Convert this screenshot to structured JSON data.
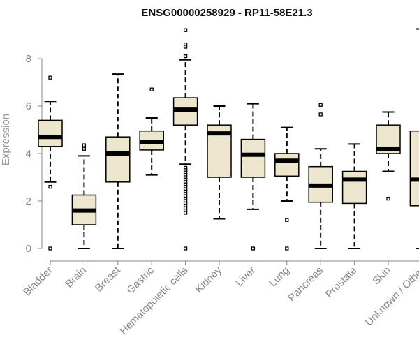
{
  "chart_data": {
    "type": "boxplot",
    "title": "ENSG00000258929 - RP11-58E21.3",
    "xlabel": "",
    "ylabel": "Expression",
    "ylim": [
      0,
      9.5
    ],
    "yticks": [
      0,
      2,
      4,
      6,
      8
    ],
    "box_color": "#ede5cc",
    "line_color": "#000000",
    "axis_color": "#888888",
    "categories": [
      "Bladder",
      "Brain",
      "Breast",
      "Gastric",
      "Hematopoietic cells",
      "Kidney",
      "Liver",
      "Lung",
      "Pancreas",
      "Prostate",
      "Skin",
      "Unknown / Other"
    ],
    "boxes": [
      {
        "category": "Bladder",
        "whisker_low": 2.8,
        "q1": 4.3,
        "median": 4.7,
        "q3": 5.4,
        "whisker_high": 6.2,
        "outliers": [
          7.2,
          2.6,
          0
        ]
      },
      {
        "category": "Brain",
        "whisker_low": 0,
        "q1": 1.0,
        "median": 1.6,
        "q3": 2.25,
        "whisker_high": 3.9,
        "outliers": [
          4.2,
          4.35
        ]
      },
      {
        "category": "Breast",
        "whisker_low": 0,
        "q1": 2.8,
        "median": 4.0,
        "q3": 4.7,
        "whisker_high": 7.35,
        "outliers": []
      },
      {
        "category": "Gastric",
        "whisker_low": 3.1,
        "q1": 4.15,
        "median": 4.5,
        "q3": 4.95,
        "whisker_high": 5.5,
        "outliers": [
          6.7
        ]
      },
      {
        "category": "Hematopoietic cells",
        "whisker_low": 3.55,
        "q1": 5.2,
        "median": 5.85,
        "q3": 6.35,
        "whisker_high": 7.95,
        "outliers": [
          9.2,
          8.6,
          8.5,
          8.1,
          3.4,
          3.3,
          3.2,
          3.1,
          3.0,
          2.9,
          2.8,
          2.7,
          2.6,
          2.5,
          2.4,
          2.3,
          2.2,
          2.1,
          2.0,
          1.9,
          1.8,
          1.7,
          1.6,
          1.5,
          0
        ]
      },
      {
        "category": "Kidney",
        "whisker_low": 1.25,
        "q1": 3.0,
        "median": 4.85,
        "q3": 5.2,
        "whisker_high": 6.0,
        "outliers": []
      },
      {
        "category": "Liver",
        "whisker_low": 1.65,
        "q1": 3.0,
        "median": 3.95,
        "q3": 4.6,
        "whisker_high": 6.1,
        "outliers": [
          0
        ]
      },
      {
        "category": "Lung",
        "whisker_low": 2.0,
        "q1": 3.05,
        "median": 3.7,
        "q3": 4.0,
        "whisker_high": 5.1,
        "outliers": [
          1.2,
          0
        ]
      },
      {
        "category": "Pancreas",
        "whisker_low": 0,
        "q1": 1.95,
        "median": 2.65,
        "q3": 3.45,
        "whisker_high": 4.2,
        "outliers": [
          6.05,
          5.65
        ]
      },
      {
        "category": "Prostate",
        "whisker_low": 0,
        "q1": 1.9,
        "median": 2.9,
        "q3": 3.25,
        "whisker_high": 4.4,
        "outliers": []
      },
      {
        "category": "Skin",
        "whisker_low": 3.25,
        "q1": 4.0,
        "median": 4.2,
        "q3": 5.2,
        "whisker_high": 5.75,
        "outliers": [
          2.1
        ]
      },
      {
        "category": "Unknown / Other",
        "whisker_low": 0,
        "q1": 1.8,
        "median": 2.9,
        "q3": 4.95,
        "whisker_high": 9.25,
        "outliers": []
      }
    ]
  }
}
